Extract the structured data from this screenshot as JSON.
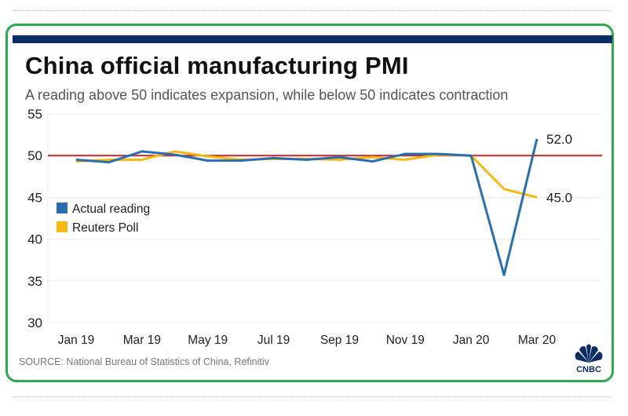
{
  "header": {
    "title": "China official manufacturing PMI",
    "subtitle": "A reading above 50 indicates expansion, while below 50 indicates contraction"
  },
  "footer": {
    "source": "SOURCE: National Bureau of Statistics of China, Refinitiv",
    "logo_label": "CNBC",
    "logo_icon": "peacock-icon"
  },
  "colors": {
    "frame": "#2eaa52",
    "topbar": "#0b2c64",
    "actual": "#2a6fad",
    "poll": "#f5b914",
    "reference": "#c0282d",
    "grid": "#ececec"
  },
  "chart_data": {
    "type": "line",
    "title": "China official manufacturing PMI",
    "subtitle": "A reading above 50 indicates expansion, while below 50 indicates contraction",
    "xlabel": "",
    "ylabel": "",
    "x": [
      "Jan 19",
      "Feb 19",
      "Mar 19",
      "Apr 19",
      "May 19",
      "Jun 19",
      "Jul 19",
      "Aug 19",
      "Sep 19",
      "Oct 19",
      "Nov 19",
      "Dec 19",
      "Jan 20",
      "Feb 20",
      "Mar 20"
    ],
    "x_tick_labels": [
      "Jan 19",
      "Mar 19",
      "May 19",
      "Jul 19",
      "Sep 19",
      "Nov 19",
      "Jan 20",
      "Mar 20"
    ],
    "ylim": [
      30,
      55
    ],
    "y_ticks": [
      30,
      35,
      40,
      45,
      50,
      55
    ],
    "grid": true,
    "reference_line": 50,
    "legend": {
      "placement": "left-middle",
      "entries": [
        "Actual reading",
        "Reuters Poll"
      ]
    },
    "series": [
      {
        "name": "Actual reading",
        "values": [
          49.5,
          49.2,
          50.5,
          50.1,
          49.4,
          49.4,
          49.7,
          49.5,
          49.8,
          49.3,
          50.2,
          50.2,
          50.0,
          35.7,
          52.0
        ],
        "end_label": "52.0"
      },
      {
        "name": "Reuters Poll",
        "values": [
          49.3,
          49.5,
          49.5,
          50.5,
          49.9,
          49.5,
          49.6,
          49.6,
          49.5,
          49.8,
          49.5,
          50.1,
          50.0,
          46.0,
          45.0
        ],
        "end_label": "45.0"
      }
    ]
  }
}
